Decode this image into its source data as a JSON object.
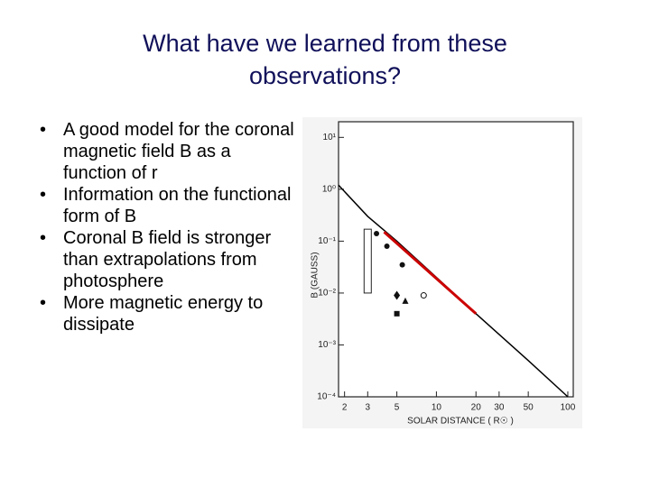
{
  "slide": {
    "title": "What have we learned from these observations?",
    "bullets": [
      "A good model for the coronal magnetic field B as a function of r",
      "Information on the functional form of B",
      "Coronal B field is stronger than extrapolations from photosphere",
      "More magnetic energy to dissipate"
    ]
  },
  "chart_data": {
    "type": "line",
    "xlabel": "SOLAR DISTANCE ( R☉ )",
    "ylabel": "B (GAUSS)",
    "log_x": true,
    "log_y": true,
    "xlim": [
      1.8,
      110
    ],
    "ylim": [
      0.0001,
      20
    ],
    "xticks": [
      2,
      3,
      5,
      10,
      20,
      30,
      50,
      100
    ],
    "yticks": [
      {
        "value": 10,
        "label": "10¹"
      },
      {
        "value": 1,
        "label": "10⁰"
      },
      {
        "value": 0.1,
        "label": "10⁻¹"
      },
      {
        "value": 0.01,
        "label": "10⁻²"
      },
      {
        "value": 0.001,
        "label": "10⁻³"
      },
      {
        "value": 0.0001,
        "label": "10⁻⁴"
      }
    ],
    "series": [
      {
        "color": "#000000",
        "x": [
          1.8,
          3,
          5,
          10,
          20,
          50,
          100
        ],
        "values": [
          1.2,
          0.3,
          0.1,
          0.02,
          0.004,
          0.0005,
          0.0001
        ]
      },
      {
        "color": "#cc0000",
        "x": [
          4,
          20
        ],
        "values": [
          0.15,
          0.004
        ]
      }
    ],
    "points": [
      {
        "marker": "circle",
        "x": [
          3.5,
          4.2,
          5.5
        ],
        "values": [
          0.14,
          0.08,
          0.035
        ]
      },
      {
        "marker": "diamond",
        "x": [
          5
        ],
        "values": [
          0.009
        ]
      },
      {
        "marker": "square",
        "x": [
          5
        ],
        "values": [
          0.004
        ]
      },
      {
        "marker": "triangle",
        "x": [
          5.8
        ],
        "values": [
          0.007
        ]
      },
      {
        "marker": "open-circle",
        "x": [
          8
        ],
        "values": [
          0.009
        ]
      }
    ],
    "ranges": [
      {
        "x": 3,
        "low": 0.01,
        "high": 0.17
      }
    ]
  }
}
